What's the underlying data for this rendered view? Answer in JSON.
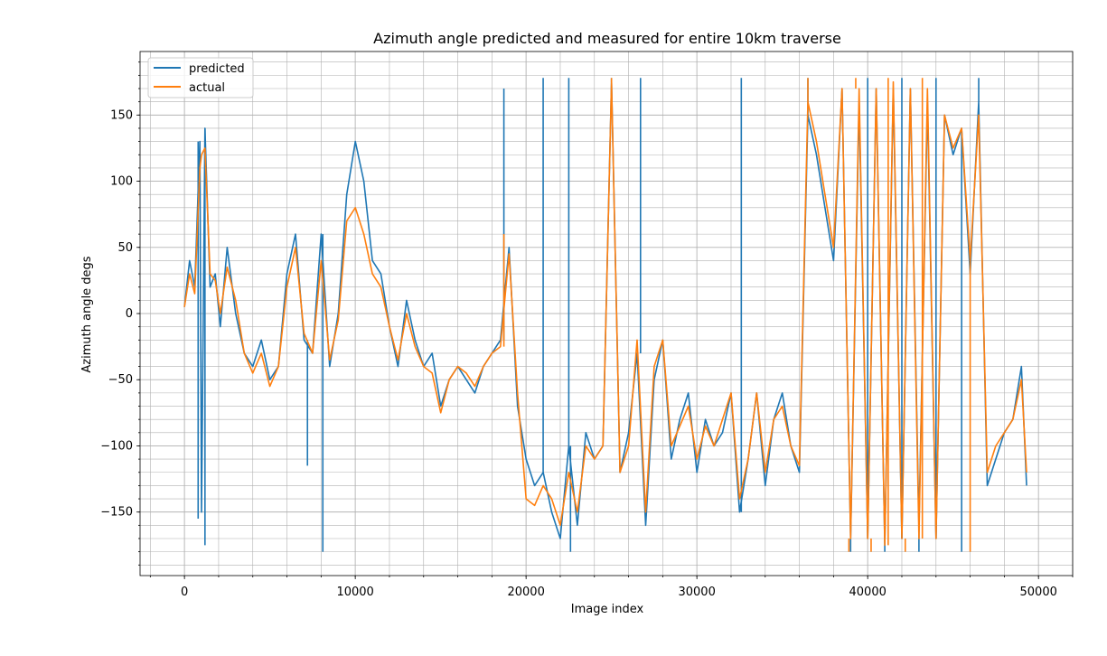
{
  "chart_data": {
    "type": "line",
    "title": "Azimuth angle predicted and measured for entire 10km traverse",
    "xlabel": "Image index",
    "ylabel": "Azimuth angle degs",
    "xlim": [
      -2600,
      52000
    ],
    "ylim": [
      -198,
      198
    ],
    "x_ticks": [
      0,
      10000,
      20000,
      30000,
      40000,
      50000
    ],
    "x_tick_labels": [
      "0",
      "10000",
      "20000",
      "30000",
      "40000",
      "50000"
    ],
    "y_ticks": [
      -150,
      -100,
      -50,
      0,
      50,
      100,
      150
    ],
    "y_tick_labels": [
      "−150",
      "−100",
      "−50",
      "0",
      "50",
      "100",
      "150"
    ],
    "x_minor_step": 2000,
    "y_minor_step": 10,
    "grid": true,
    "legend": {
      "position": "top-left"
    },
    "series": [
      {
        "name": "predicted",
        "color": "#1f77b4",
        "x": [
          0,
          300,
          600,
          900,
          1000,
          1200,
          1500,
          1800,
          2100,
          2500,
          3000,
          3500,
          4000,
          4500,
          5000,
          5500,
          6000,
          6500,
          7000,
          7500,
          8000,
          8500,
          9000,
          9500,
          10000,
          10500,
          11000,
          11500,
          12000,
          12500,
          13000,
          13500,
          14000,
          14500,
          15000,
          15500,
          16000,
          16500,
          17000,
          17500,
          18000,
          18500,
          19000,
          19500,
          20000,
          20500,
          21000,
          21500,
          22000,
          22500,
          23000,
          23500,
          24000,
          24500,
          25000,
          25500,
          26000,
          26500,
          27000,
          27500,
          28000,
          28500,
          29000,
          29500,
          30000,
          30500,
          31000,
          31500,
          32000,
          32500,
          33000,
          33500,
          34000,
          34500,
          35000,
          35500,
          36000,
          36500,
          37000,
          37500,
          38000,
          38500,
          39000,
          39500,
          40000,
          40500,
          41000,
          41500,
          42000,
          42500,
          43000,
          43500,
          44000,
          44500,
          45000,
          45500,
          46000,
          46500,
          47000,
          47500,
          48000,
          48500,
          49000,
          49300
        ],
        "y": [
          5,
          40,
          20,
          130,
          -150,
          140,
          20,
          30,
          -10,
          50,
          0,
          -30,
          -40,
          -20,
          -50,
          -40,
          30,
          60,
          -20,
          -30,
          60,
          -40,
          0,
          90,
          130,
          100,
          40,
          30,
          -10,
          -40,
          10,
          -20,
          -40,
          -30,
          -70,
          -50,
          -40,
          -50,
          -60,
          -40,
          -30,
          -20,
          50,
          -70,
          -110,
          -130,
          -120,
          -150,
          -170,
          -100,
          -160,
          -90,
          -110,
          -100,
          175,
          -120,
          -90,
          -30,
          -160,
          -50,
          -20,
          -110,
          -80,
          -60,
          -120,
          -80,
          -100,
          -90,
          -60,
          -150,
          -110,
          -60,
          -130,
          -80,
          -60,
          -100,
          -120,
          150,
          120,
          80,
          40,
          170,
          -170,
          160,
          -170,
          170,
          -175,
          170,
          -170,
          170,
          -160,
          160,
          -170,
          150,
          120,
          140,
          30,
          160,
          -130,
          -110,
          -90,
          -80,
          -40,
          -130
        ],
        "overlay_spikes": [
          {
            "x": 800,
            "y": -155
          },
          {
            "x": 1200,
            "y": -175
          },
          {
            "x": 7200,
            "y": -115
          },
          {
            "x": 8100,
            "y": -180
          },
          {
            "x": 18700,
            "y": 170
          },
          {
            "x": 21000,
            "y": 178
          },
          {
            "x": 22500,
            "y": 178
          },
          {
            "x": 22600,
            "y": -180
          },
          {
            "x": 25000,
            "y": 178
          },
          {
            "x": 26700,
            "y": 178
          },
          {
            "x": 32600,
            "y": 178
          },
          {
            "x": 36500,
            "y": 178
          },
          {
            "x": 39000,
            "y": -180
          },
          {
            "x": 40000,
            "y": 178
          },
          {
            "x": 41000,
            "y": -180
          },
          {
            "x": 42000,
            "y": 178
          },
          {
            "x": 43000,
            "y": -180
          },
          {
            "x": 44000,
            "y": 178
          },
          {
            "x": 45500,
            "y": -180
          },
          {
            "x": 46500,
            "y": 178
          }
        ]
      },
      {
        "name": "actual",
        "color": "#ff7f0e",
        "x": [
          0,
          300,
          600,
          900,
          1000,
          1200,
          1500,
          1800,
          2100,
          2500,
          3000,
          3500,
          4000,
          4500,
          5000,
          5500,
          6000,
          6500,
          7000,
          7500,
          8000,
          8500,
          9000,
          9500,
          10000,
          10500,
          11000,
          11500,
          12000,
          12500,
          13000,
          13500,
          14000,
          14500,
          15000,
          15500,
          16000,
          16500,
          17000,
          17500,
          18000,
          18500,
          19000,
          19500,
          20000,
          20500,
          21000,
          21500,
          22000,
          22500,
          23000,
          23500,
          24000,
          24500,
          25000,
          25500,
          26000,
          26500,
          27000,
          27500,
          28000,
          28500,
          29000,
          29500,
          30000,
          30500,
          31000,
          31500,
          32000,
          32500,
          33000,
          33500,
          34000,
          34500,
          35000,
          35500,
          36000,
          36500,
          37000,
          37500,
          38000,
          38500,
          39000,
          39500,
          40000,
          40500,
          41000,
          41500,
          42000,
          42500,
          43000,
          43500,
          44000,
          44500,
          45000,
          45500,
          46000,
          46500,
          47000,
          47500,
          48000,
          48500,
          49000,
          49300
        ],
        "y": [
          5,
          30,
          15,
          110,
          120,
          125,
          30,
          25,
          0,
          35,
          10,
          -30,
          -45,
          -30,
          -55,
          -40,
          20,
          50,
          -15,
          -30,
          40,
          -35,
          -5,
          70,
          80,
          60,
          30,
          20,
          -10,
          -35,
          0,
          -25,
          -40,
          -45,
          -75,
          -50,
          -40,
          -45,
          -55,
          -40,
          -30,
          -25,
          45,
          -60,
          -140,
          -145,
          -130,
          -140,
          -160,
          -120,
          -150,
          -100,
          -110,
          -100,
          175,
          -120,
          -100,
          -20,
          -150,
          -40,
          -20,
          -100,
          -85,
          -70,
          -110,
          -85,
          -100,
          -80,
          -60,
          -140,
          -110,
          -60,
          -120,
          -80,
          -70,
          -100,
          -115,
          160,
          130,
          90,
          50,
          170,
          -170,
          170,
          -170,
          170,
          -175,
          175,
          -170,
          170,
          -170,
          170,
          -170,
          150,
          125,
          140,
          40,
          150,
          -120,
          -100,
          -90,
          -80,
          -50,
          -120
        ],
        "overlay_spikes": [
          {
            "x": 18700,
            "y": 60
          },
          {
            "x": 25000,
            "y": 178
          },
          {
            "x": 36500,
            "y": 178
          },
          {
            "x": 38900,
            "y": -180
          },
          {
            "x": 39300,
            "y": 178
          },
          {
            "x": 40200,
            "y": -180
          },
          {
            "x": 41200,
            "y": 178
          },
          {
            "x": 42200,
            "y": -180
          },
          {
            "x": 43200,
            "y": 178
          },
          {
            "x": 46000,
            "y": -180
          }
        ]
      }
    ]
  }
}
